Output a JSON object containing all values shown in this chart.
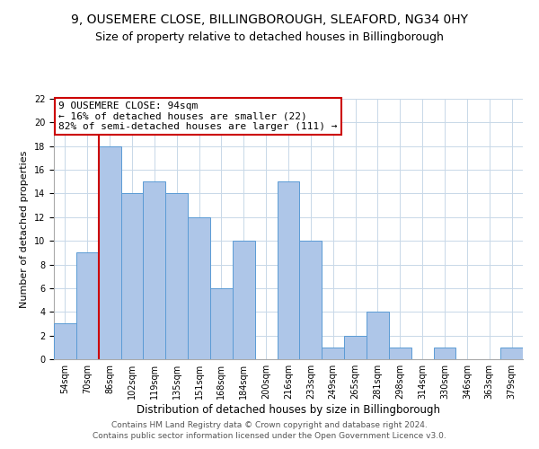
{
  "title": "9, OUSEMERE CLOSE, BILLINGBOROUGH, SLEAFORD, NG34 0HY",
  "subtitle": "Size of property relative to detached houses in Billingborough",
  "xlabel": "Distribution of detached houses by size in Billingborough",
  "ylabel": "Number of detached properties",
  "footer_line1": "Contains HM Land Registry data © Crown copyright and database right 2024.",
  "footer_line2": "Contains public sector information licensed under the Open Government Licence v3.0.",
  "categories": [
    "54sqm",
    "70sqm",
    "86sqm",
    "102sqm",
    "119sqm",
    "135sqm",
    "151sqm",
    "168sqm",
    "184sqm",
    "200sqm",
    "216sqm",
    "233sqm",
    "249sqm",
    "265sqm",
    "281sqm",
    "298sqm",
    "314sqm",
    "330sqm",
    "346sqm",
    "363sqm",
    "379sqm"
  ],
  "values": [
    3,
    9,
    18,
    14,
    15,
    14,
    12,
    6,
    10,
    0,
    15,
    10,
    1,
    2,
    4,
    1,
    0,
    1,
    0,
    0,
    1
  ],
  "bar_color": "#aec6e8",
  "bar_edge_color": "#5b9bd5",
  "vline_color": "#cc0000",
  "annotation_title": "9 OUSEMERE CLOSE: 94sqm",
  "annotation_line1": "← 16% of detached houses are smaller (22)",
  "annotation_line2": "82% of semi-detached houses are larger (111) →",
  "annotation_box_color": "#cc0000",
  "ylim": [
    0,
    22
  ],
  "yticks": [
    0,
    2,
    4,
    6,
    8,
    10,
    12,
    14,
    16,
    18,
    20,
    22
  ],
  "title_fontsize": 10,
  "subtitle_fontsize": 9,
  "xlabel_fontsize": 8.5,
  "ylabel_fontsize": 8,
  "tick_fontsize": 7,
  "annotation_fontsize": 8,
  "footer_fontsize": 6.5
}
